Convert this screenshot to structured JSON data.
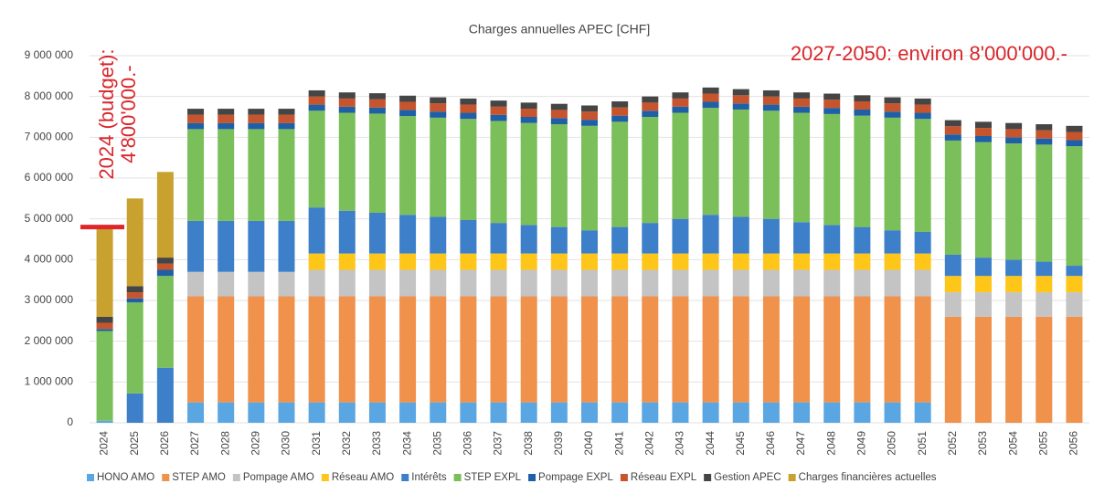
{
  "chart_data": {
    "type": "stacked_bar",
    "title": "Charges annuelles APEC [CHF]",
    "annotations": [
      {
        "text": "2027-2050: environ 8'000'000.-"
      },
      {
        "text": [
          "2024 (budget):",
          "4'800'000.-"
        ],
        "value": 4800000
      }
    ],
    "categories": [
      "2024",
      "2025",
      "2026",
      "2027",
      "2028",
      "2029",
      "2030",
      "2031",
      "2032",
      "2033",
      "2034",
      "2035",
      "2036",
      "2037",
      "2038",
      "2039",
      "2040",
      "2041",
      "2042",
      "2043",
      "2044",
      "2045",
      "2046",
      "2047",
      "2048",
      "2049",
      "2050",
      "2051",
      "2052",
      "2053",
      "2054",
      "2055",
      "2056"
    ],
    "ylim": [
      0,
      9000000
    ],
    "yticks": [
      0,
      {
        "value": 1000000,
        "label": "1 000 000"
      },
      {
        "value": 2000000,
        "label": "2 000 000"
      },
      {
        "value": 3000000,
        "label": "3 000 000"
      },
      {
        "value": 4000000,
        "label": "4 000 000"
      },
      {
        "value": 5000000,
        "label": "5 000 000"
      },
      {
        "value": 6000000,
        "label": "6 000 000"
      },
      {
        "value": 7000000,
        "label": "7 000 000"
      },
      {
        "value": 8000000,
        "label": "8 000 000"
      },
      {
        "value": 9000000,
        "label": "9 000 000"
      }
    ],
    "grid": true,
    "legend": "bottom",
    "series": [
      {
        "name": "HONO AMO",
        "color": "#5aa6e2",
        "values": [
          50000,
          0,
          0,
          500000,
          500000,
          500000,
          500000,
          500000,
          500000,
          500000,
          500000,
          500000,
          500000,
          500000,
          500000,
          500000,
          500000,
          500000,
          500000,
          500000,
          500000,
          500000,
          500000,
          500000,
          500000,
          500000,
          500000,
          500000,
          0,
          0,
          0,
          0,
          0
        ]
      },
      {
        "name": "STEP AMO",
        "color": "#f0914c",
        "values": [
          0,
          0,
          0,
          2600000,
          2600000,
          2600000,
          2600000,
          2600000,
          2600000,
          2600000,
          2600000,
          2600000,
          2600000,
          2600000,
          2600000,
          2600000,
          2600000,
          2600000,
          2600000,
          2600000,
          2600000,
          2600000,
          2600000,
          2600000,
          2600000,
          2600000,
          2600000,
          2600000,
          2600000,
          2600000,
          2600000,
          2600000,
          2600000
        ]
      },
      {
        "name": "Pompage AMO",
        "color": "#c4c4c4",
        "values": [
          0,
          0,
          0,
          600000,
          600000,
          600000,
          600000,
          650000,
          650000,
          650000,
          650000,
          650000,
          650000,
          650000,
          650000,
          650000,
          650000,
          650000,
          650000,
          650000,
          650000,
          650000,
          650000,
          650000,
          650000,
          650000,
          650000,
          650000,
          600000,
          600000,
          600000,
          600000,
          600000
        ]
      },
      {
        "name": "Réseau AMO",
        "color": "#ffc61a",
        "values": [
          0,
          0,
          0,
          0,
          0,
          0,
          0,
          400000,
          400000,
          400000,
          400000,
          400000,
          400000,
          400000,
          400000,
          400000,
          400000,
          400000,
          400000,
          400000,
          400000,
          400000,
          400000,
          400000,
          400000,
          400000,
          400000,
          400000,
          400000,
          400000,
          400000,
          400000,
          400000
        ]
      },
      {
        "name": "Intérêts",
        "color": "#3d80c9",
        "values": [
          0,
          720000,
          1350000,
          1250000,
          1250000,
          1250000,
          1250000,
          1130000,
          1050000,
          1000000,
          950000,
          900000,
          820000,
          750000,
          700000,
          650000,
          570000,
          650000,
          750000,
          850000,
          950000,
          900000,
          850000,
          770000,
          700000,
          650000,
          570000,
          530000,
          520000,
          450000,
          400000,
          350000,
          250000
        ]
      },
      {
        "name": "STEP EXPL",
        "color": "#7bbf5a",
        "values": [
          2200000,
          2230000,
          2250000,
          2250000,
          2250000,
          2250000,
          2250000,
          2370000,
          2400000,
          2430000,
          2420000,
          2430000,
          2480000,
          2500000,
          2500000,
          2520000,
          2560000,
          2580000,
          2600000,
          2600000,
          2620000,
          2630000,
          2650000,
          2680000,
          2720000,
          2730000,
          2760000,
          2770000,
          2800000,
          2830000,
          2850000,
          2870000,
          2930000
        ]
      },
      {
        "name": "Pompage EXPL",
        "color": "#1f5fa6",
        "values": [
          50000,
          100000,
          150000,
          150000,
          150000,
          150000,
          150000,
          150000,
          150000,
          150000,
          150000,
          150000,
          150000,
          150000,
          150000,
          150000,
          150000,
          150000,
          150000,
          150000,
          150000,
          150000,
          150000,
          150000,
          150000,
          150000,
          150000,
          150000,
          150000,
          150000,
          150000,
          150000,
          150000
        ]
      },
      {
        "name": "Réseau EXPL",
        "color": "#c6542c",
        "values": [
          150000,
          150000,
          150000,
          200000,
          200000,
          200000,
          200000,
          200000,
          200000,
          200000,
          200000,
          200000,
          200000,
          200000,
          200000,
          200000,
          200000,
          200000,
          200000,
          200000,
          200000,
          200000,
          200000,
          200000,
          200000,
          200000,
          200000,
          200000,
          200000,
          200000,
          200000,
          200000,
          200000
        ]
      },
      {
        "name": "Gestion APEC",
        "color": "#454545",
        "values": [
          150000,
          150000,
          150000,
          150000,
          150000,
          150000,
          150000,
          150000,
          150000,
          150000,
          150000,
          150000,
          150000,
          150000,
          150000,
          150000,
          150000,
          150000,
          150000,
          150000,
          150000,
          150000,
          150000,
          150000,
          150000,
          150000,
          150000,
          150000,
          150000,
          150000,
          150000,
          150000,
          150000
        ]
      },
      {
        "name": "Charges financières actuelles",
        "color": "#c9a12f",
        "values": [
          2200000,
          2150000,
          2100000,
          0,
          0,
          0,
          0,
          0,
          0,
          0,
          0,
          0,
          0,
          0,
          0,
          0,
          0,
          0,
          0,
          0,
          0,
          0,
          0,
          0,
          0,
          0,
          0,
          0,
          0,
          0,
          0,
          0,
          0
        ]
      }
    ]
  }
}
